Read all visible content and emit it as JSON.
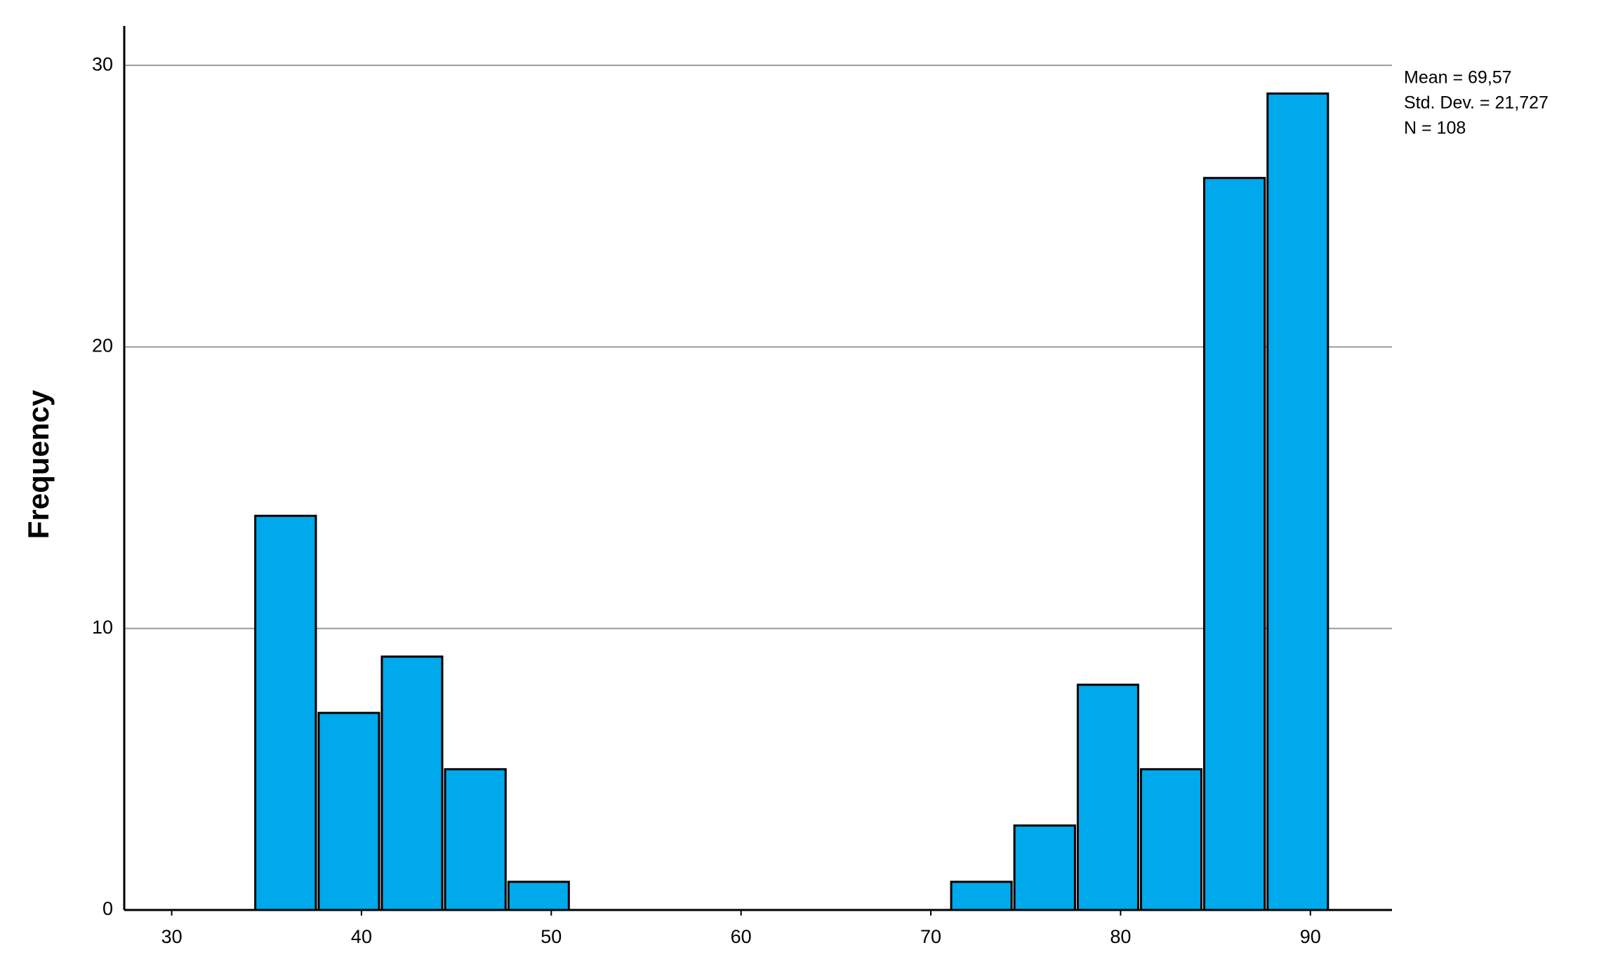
{
  "chart_data": {
    "type": "histogram",
    "y_label": "Frequency",
    "bins": [
      34.33,
      37.67,
      41,
      44.33,
      47.67,
      51,
      54.33,
      57.67,
      61,
      64.33,
      67.67,
      71,
      74.33,
      77.67,
      81,
      84.33,
      87.67,
      91
    ],
    "values": [
      14,
      7,
      9,
      5,
      1,
      0,
      0,
      0,
      0,
      0,
      0,
      1,
      3,
      8,
      5,
      26,
      29
    ],
    "color": "#00a8ec",
    "xlim": [
      27.5,
      94.3
    ],
    "xticks": [
      30,
      40,
      50,
      60,
      70,
      80,
      90
    ],
    "ylim": [
      0,
      31.4
    ],
    "yticks": [
      0,
      10,
      20,
      30
    ],
    "grid": true,
    "stats": [
      "Mean = 69,57",
      "Std. Dev. = 21,727",
      "N = 108"
    ]
  }
}
